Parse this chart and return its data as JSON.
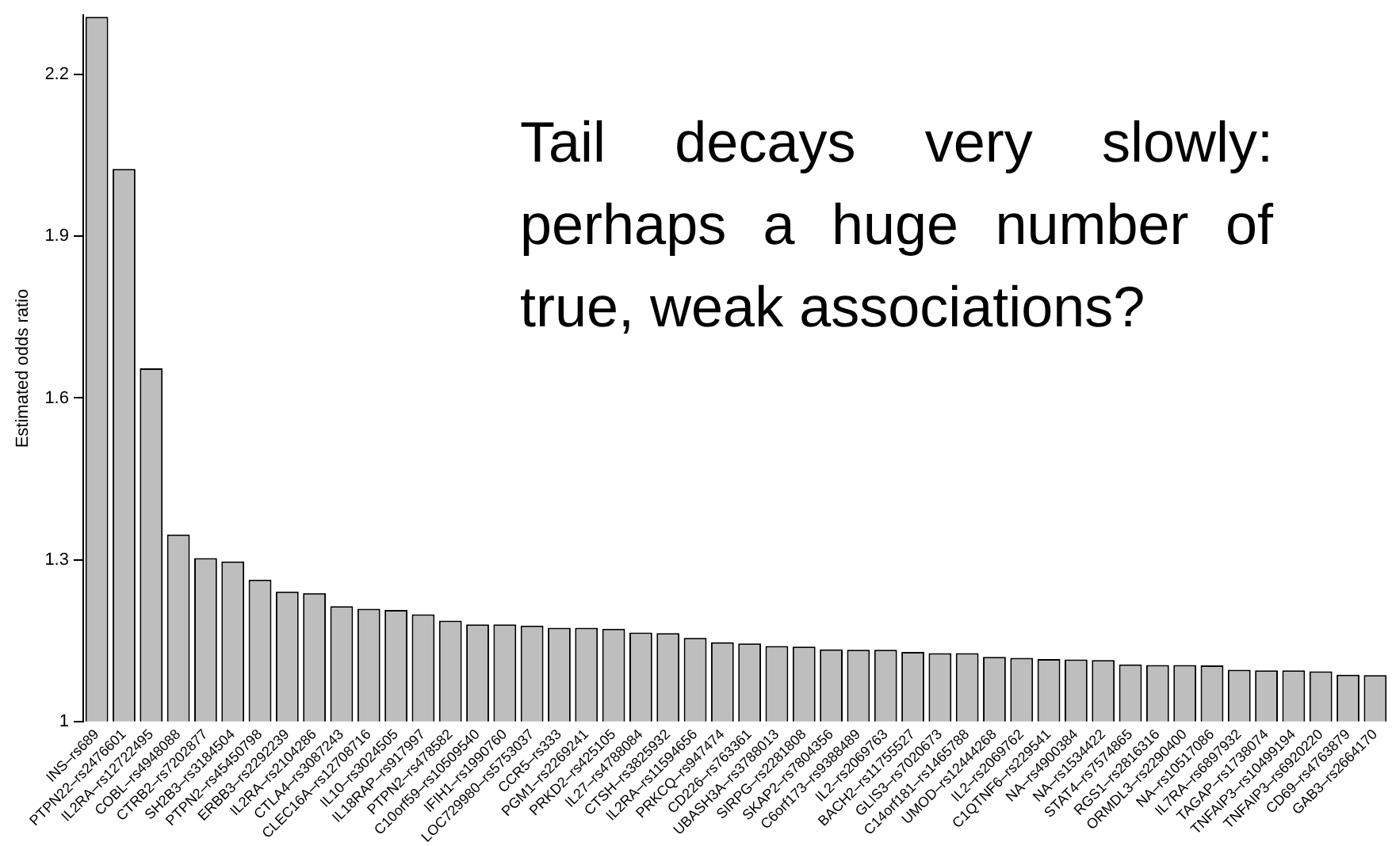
{
  "chart_data": {
    "type": "bar",
    "ylabel": "Estimated odds ratio",
    "categories": [
      "INS–rs689",
      "PTPN22–rs2476601",
      "IL2RA–rs12722495",
      "COBL–rs4948088",
      "CTRB2–rs7202877",
      "SH2B3–rs3184504",
      "PTPN2–rs45450798",
      "ERBB3–rs2292239",
      "IL2RA–rs2104286",
      "CTLA4–rs3087243",
      "CLEC16A–rs12708716",
      "IL10–rs3024505",
      "IL18RAP–rs917997",
      "PTPN2–rs478582",
      "C10orf59–rs10509540",
      "IFIH1–rs1990760",
      "LOC729980–rs5753037",
      "CCR5–rs333",
      "PGM1–rs2269241",
      "PRKD2–rs425105",
      "IL27–rs4788084",
      "CTSH–rs3825932",
      "IL2RA–rs11594656",
      "PRKCQ–rs947474",
      "CD226–rs763361",
      "UBASH3A–rs3788013",
      "SIRPG–rs2281808",
      "SKAP2–rs7804356",
      "C6orf173–rs9388489",
      "IL2–rs2069763",
      "BACH2–rs11755527",
      "GLIS3–rs7020673",
      "C14orf181–rs1465788",
      "UMOD–rs12444268",
      "IL2–rs2069762",
      "C1QTNF6–rs229541",
      "NA–rs4900384",
      "NA–rs1534422",
      "STAT4–rs7574865",
      "RGS1–rs2816316",
      "ORMDL3–rs2290400",
      "NA–rs10517086",
      "IL7RA–rs6897932",
      "TAGAP–rs1738074",
      "TNFAIP3–rs10499194",
      "TNFAIP3–rs6920220",
      "CD69–rs4763879",
      "GAB3–rs2664170"
    ],
    "values": [
      2.307,
      2.025,
      1.655,
      1.347,
      1.303,
      1.297,
      1.263,
      1.241,
      1.238,
      1.214,
      1.209,
      1.207,
      1.199,
      1.187,
      1.18,
      1.18,
      1.178,
      1.174,
      1.174,
      1.172,
      1.165,
      1.164,
      1.155,
      1.147,
      1.145,
      1.14,
      1.139,
      1.134,
      1.133,
      1.133,
      1.129,
      1.127,
      1.127,
      1.12,
      1.118,
      1.116,
      1.115,
      1.114,
      1.106,
      1.105,
      1.105,
      1.104,
      1.096,
      1.095,
      1.095,
      1.093,
      1.087,
      1.086
    ],
    "color": "#bebebe",
    "ylim": [
      1,
      2.31
    ],
    "yticks": [
      1,
      1.3,
      1.6,
      1.9,
      2.2
    ],
    "grid": false,
    "legend": false,
    "annotations": [
      "Tail decays very slowly: perhaps a huge number of true, weak associations?"
    ]
  }
}
